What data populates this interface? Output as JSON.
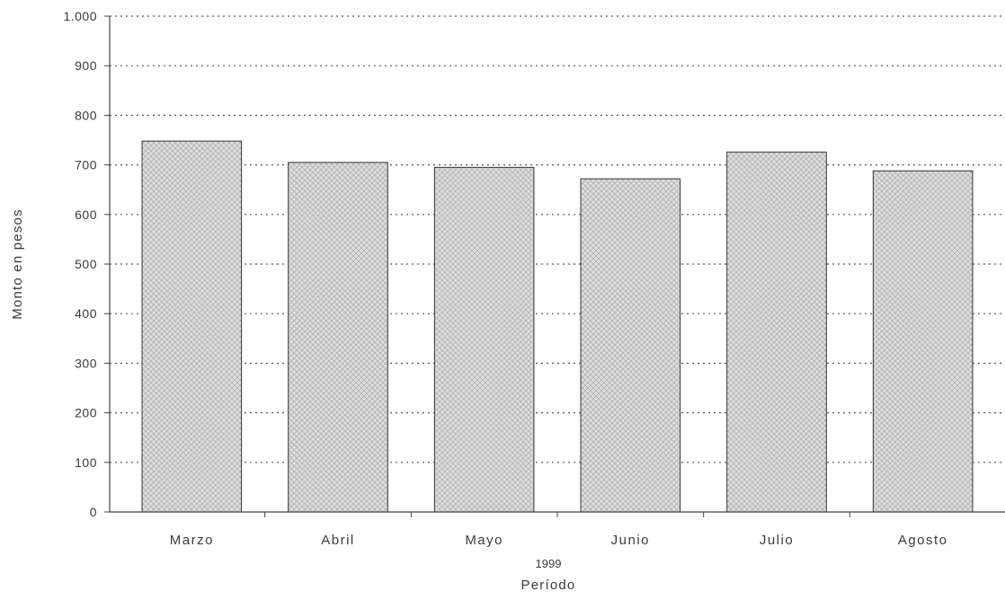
{
  "chart_data": {
    "type": "bar",
    "categories": [
      "Marzo",
      "Abril",
      "Mayo",
      "Junio",
      "Julio",
      "Agosto"
    ],
    "values": [
      748,
      705,
      695,
      672,
      726,
      688
    ],
    "ylabel": "Monto en pesos",
    "xlabel": "Período",
    "xsublabel": "1999",
    "ylim": [
      0,
      1000
    ],
    "yticks": [
      0,
      100,
      200,
      300,
      400,
      500,
      600,
      700,
      800,
      900,
      1000
    ],
    "ytick_labels": [
      "0",
      "100",
      "200",
      "300",
      "400",
      "500",
      "600",
      "700",
      "800",
      "900",
      "1.000"
    ],
    "grid": true,
    "bar_fill": "#d8d8d8",
    "bar_pattern": "crosshatch"
  }
}
